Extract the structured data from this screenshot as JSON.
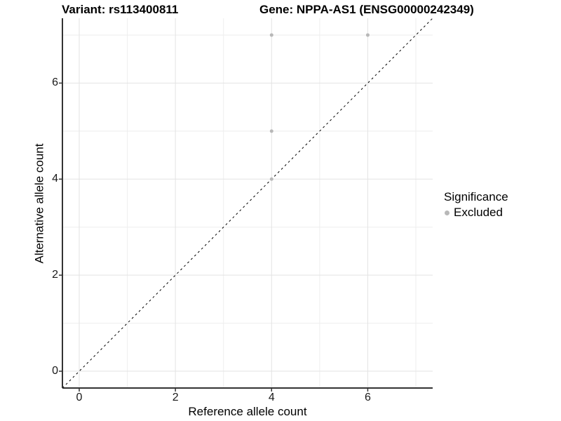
{
  "titles": {
    "variant": "Variant: rs113400811",
    "gene": "Gene: NPPA-AS1 (ENSG00000242349)"
  },
  "legend": {
    "title": "Significance",
    "items": [
      {
        "label": "Excluded",
        "color": "#b8b8b8"
      }
    ]
  },
  "chart_data": {
    "type": "scatter",
    "title": "Variant: rs113400811  Gene: NPPA-AS1 (ENSG00000242349)",
    "xlabel": "Reference allele count",
    "ylabel": "Alternative allele count",
    "xlim": [
      -0.35,
      7.35
    ],
    "ylim": [
      -0.35,
      7.35
    ],
    "x_ticks": [
      0,
      2,
      4,
      6
    ],
    "y_ticks": [
      0,
      2,
      4,
      6
    ],
    "x_minor_ticks": [
      1,
      3,
      5,
      7
    ],
    "y_minor_ticks": [
      1,
      3,
      5,
      7
    ],
    "grid": true,
    "legend_position": "right",
    "series": [
      {
        "name": "Excluded",
        "color": "#b8b8b8",
        "point_radius": 2.5,
        "points": [
          {
            "x": 4,
            "y": 7
          },
          {
            "x": 6,
            "y": 7
          },
          {
            "x": 4,
            "y": 5
          },
          {
            "x": 4,
            "y": 4
          }
        ]
      }
    ],
    "reference_line": {
      "type": "identity",
      "style": "dashed",
      "color": "#000000",
      "width": 1
    },
    "colors": {
      "axis_line": "#333333",
      "tick_mark": "#333333",
      "grid_major": "#e3e3e3",
      "grid_minor": "#eeeeee",
      "tick_label": "#1a1a1a",
      "background": "#ffffff"
    }
  }
}
